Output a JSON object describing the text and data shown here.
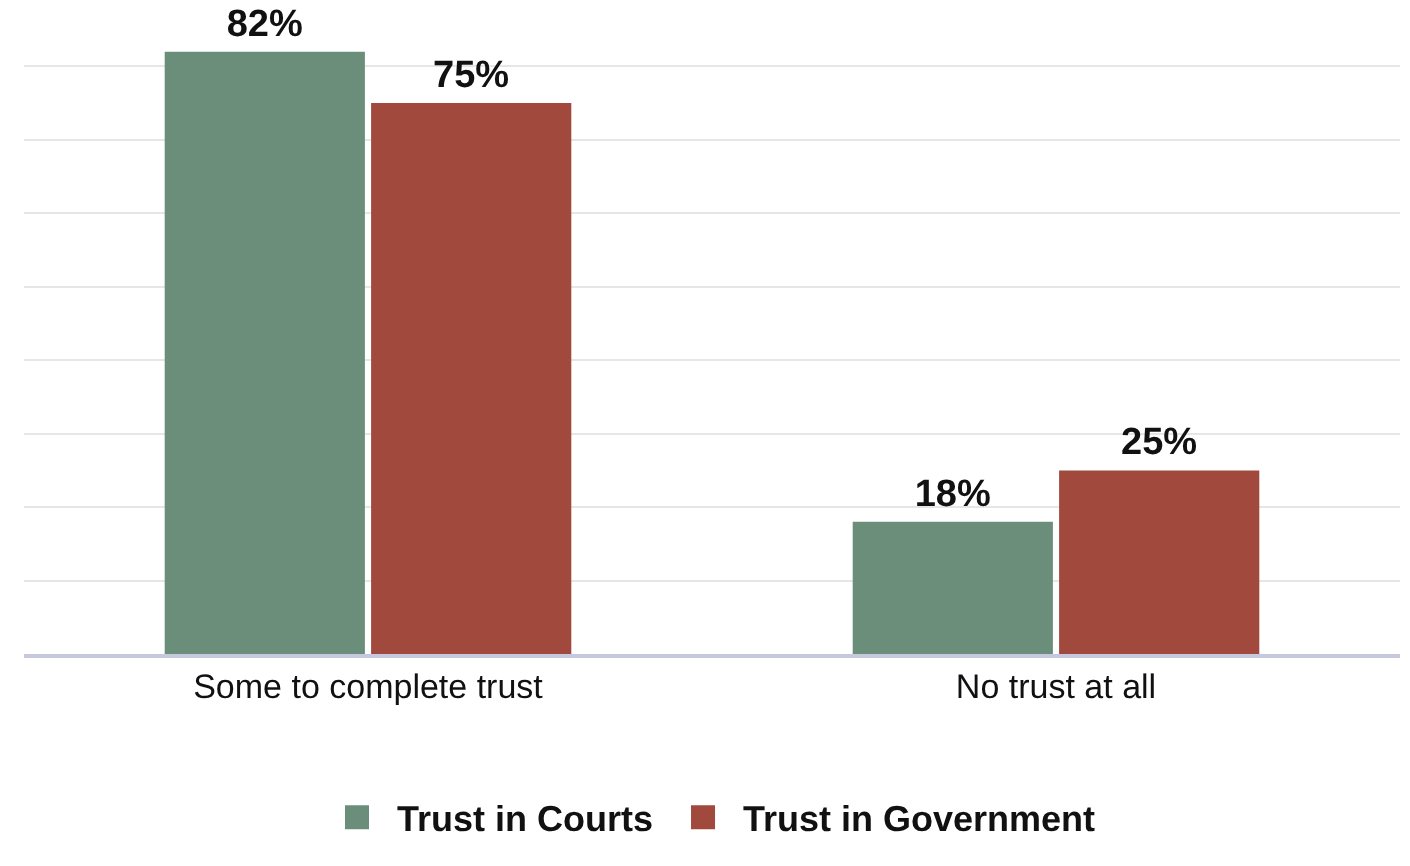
{
  "chart_data": {
    "type": "bar",
    "categories": [
      "Some to complete trust",
      "No trust at all"
    ],
    "series": [
      {
        "name": "Trust in Courts",
        "color": "#6b8e7a",
        "values": [
          82,
          18
        ],
        "value_labels": [
          "82%",
          "18%"
        ]
      },
      {
        "name": "Trust in Government",
        "color": "#a0493c",
        "values": [
          75,
          25
        ],
        "value_labels": [
          "75%",
          "25%"
        ]
      }
    ],
    "tick_labels": "x",
    "grid": "y",
    "legend": "bottom"
  }
}
